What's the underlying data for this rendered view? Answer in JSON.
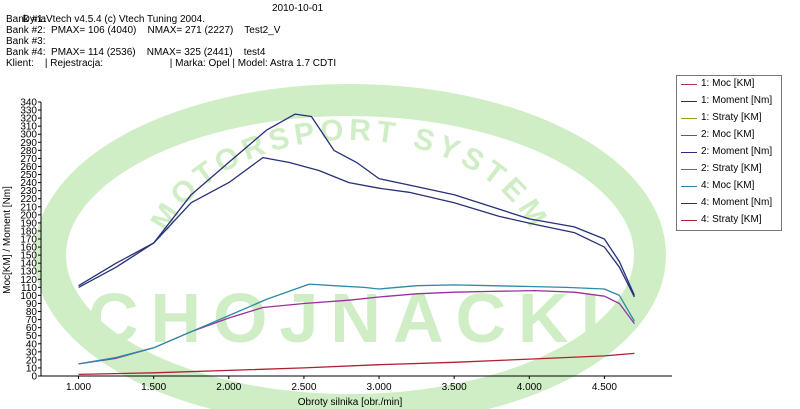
{
  "header": {
    "app_line": "DynaVtech v4.5.4 (c) Vtech Tuning 2004.",
    "date": "2010-10-01",
    "bank1": "Bank #1:",
    "bank2": "Bank #2:  PMAX= 106 (4040)    NMAX= 271 (2227)    Test2_V",
    "bank3": "Bank #3:",
    "bank4": "Bank #4:  PMAX= 114 (2536)    NMAX= 325 (2441)    test4",
    "client": "Klient:    | Rejestracja:                        | Marka: Opel | Model: Astra 1.7 CDTI"
  },
  "watermark": {
    "text": "CHOJNACKI",
    "arc_text": "MOTORSPORT SYSTEM",
    "color": "#cfeec6"
  },
  "chart_data": {
    "type": "line",
    "xlabel": "Obroty silnika [obr./min]",
    "ylabel": "Moc[KM] / Moment [Nm]",
    "xlim": [
      750,
      4950
    ],
    "ylim": [
      0,
      340
    ],
    "x_ticks": [
      1000,
      1500,
      2000,
      2500,
      3000,
      3500,
      4000,
      4500
    ],
    "x_tick_labels": [
      "1.000",
      "1.500",
      "2.000",
      "2.500",
      "3.000",
      "3.500",
      "4.000",
      "4.500"
    ],
    "y_ticks": [
      0,
      10,
      20,
      30,
      40,
      50,
      60,
      70,
      80,
      90,
      100,
      110,
      120,
      130,
      140,
      150,
      160,
      170,
      180,
      190,
      200,
      210,
      220,
      230,
      240,
      250,
      260,
      270,
      280,
      290,
      300,
      310,
      320,
      330,
      340
    ],
    "y_tick_labels": [
      "0",
      "10",
      "20",
      "30",
      "40",
      "50",
      "60",
      "70",
      "80",
      "90",
      "100",
      "110",
      "120",
      "130",
      "140",
      "150",
      "160",
      "170",
      "180",
      "190",
      "200",
      "210",
      "220",
      "230",
      "240",
      "250",
      "260",
      "270",
      "280",
      "290",
      "300",
      "310",
      "320",
      "330",
      "340"
    ],
    "grid": false,
    "legend_position": "top-right",
    "series": [
      {
        "name": "1: Moc [KM]",
        "color": "#b03060",
        "visible": false,
        "x": [],
        "y": []
      },
      {
        "name": "1: Moment [Nm]",
        "color": "#203080",
        "visible": false,
        "x": [],
        "y": []
      },
      {
        "name": "1: Straty [KM]",
        "color": "#90a020",
        "visible": false,
        "x": [],
        "y": []
      },
      {
        "name": "2: Moc [KM]",
        "color": "#9a30a0",
        "x": [
          1000,
          1250,
          1500,
          1750,
          2000,
          2227,
          2500,
          2800,
          3000,
          3250,
          3500,
          3750,
          4040,
          4300,
          4500,
          4600,
          4700
        ],
        "y": [
          15,
          22,
          35,
          55,
          72,
          85,
          90,
          94,
          98,
          102,
          104,
          105,
          106,
          104,
          99,
          90,
          65
        ]
      },
      {
        "name": "2: Moment [Nm]",
        "color": "#283078",
        "x": [
          1000,
          1250,
          1500,
          1750,
          2000,
          2227,
          2400,
          2600,
          2800,
          3000,
          3200,
          3500,
          3800,
          4040,
          4300,
          4500,
          4600,
          4700
        ],
        "y": [
          110,
          135,
          165,
          215,
          240,
          271,
          265,
          255,
          240,
          233,
          228,
          215,
          198,
          188,
          178,
          160,
          135,
          98
        ]
      },
      {
        "name": "2: Straty [KM]",
        "color": "#2a8a6a",
        "visible": false,
        "x": [],
        "y": []
      },
      {
        "name": "4: Moc [KM]",
        "color": "#2a8aa8",
        "x": [
          1000,
          1250,
          1500,
          1750,
          2000,
          2250,
          2536,
          2700,
          2900,
          3000,
          3250,
          3500,
          3750,
          4000,
          4250,
          4500,
          4600,
          4700
        ],
        "y": [
          15,
          23,
          35,
          55,
          75,
          95,
          114,
          112,
          110,
          108,
          112,
          113,
          112,
          111,
          110,
          108,
          100,
          68
        ]
      },
      {
        "name": "4: Moment [Nm]",
        "color": "#283078",
        "x": [
          1000,
          1250,
          1500,
          1750,
          2000,
          2250,
          2441,
          2550,
          2700,
          2850,
          3000,
          3250,
          3500,
          3750,
          4000,
          4300,
          4500,
          4600,
          4700
        ],
        "y": [
          112,
          140,
          165,
          225,
          265,
          305,
          325,
          322,
          280,
          265,
          245,
          235,
          225,
          210,
          195,
          185,
          170,
          142,
          100
        ]
      },
      {
        "name": "4: Straty [KM]",
        "color": "#b02030",
        "x": [
          1000,
          1500,
          2000,
          2500,
          3000,
          3500,
          4000,
          4500,
          4700
        ],
        "y": [
          2,
          4,
          7,
          10,
          14,
          17,
          21,
          25,
          28
        ]
      }
    ]
  }
}
